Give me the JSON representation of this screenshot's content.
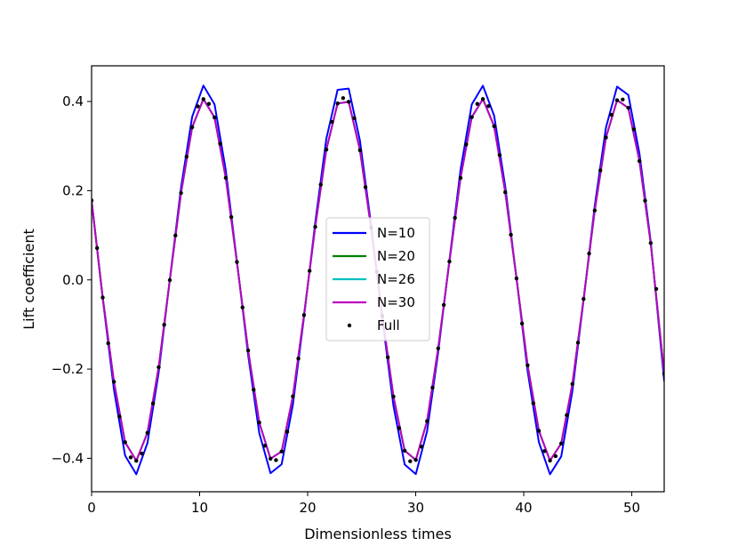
{
  "chart_data": {
    "type": "line",
    "title": "",
    "xlabel": "Dimensionless times",
    "ylabel": "Lift coefficient",
    "xlim": [
      0,
      53
    ],
    "ylim": [
      -0.475,
      0.48
    ],
    "xticks": [
      0,
      10,
      20,
      30,
      40,
      50
    ],
    "xtick_labels": [
      "0",
      "10",
      "20",
      "30",
      "40",
      "50"
    ],
    "yticks": [
      -0.4,
      -0.2,
      0.0,
      0.2,
      0.4
    ],
    "ytick_labels": [
      "−0.4",
      "−0.2",
      "0.0",
      "0.2",
      "0.4"
    ],
    "grid": false,
    "legend_position": "center",
    "series": [
      {
        "name": "N=10",
        "style": "line",
        "color": "#0000ff",
        "x": [
          0,
          1.03,
          2.07,
          3.1,
          4.14,
          5.17,
          6.21,
          7.24,
          8.28,
          9.31,
          10.35,
          11.38,
          12.42,
          13.45,
          14.49,
          15.52,
          16.56,
          17.59,
          18.63,
          19.66,
          20.7,
          21.73,
          22.77,
          23.8,
          24.84,
          25.87,
          26.91,
          27.94,
          28.98,
          30.01,
          31.05,
          32.08,
          33.12,
          34.15,
          35.19,
          36.22,
          37.26,
          38.29,
          39.33,
          40.36,
          41.4,
          42.43,
          43.47,
          44.5,
          45.54,
          46.57,
          47.61,
          48.64,
          49.68,
          50.71,
          51.75,
          53.0
        ],
        "y": [
          0.178,
          -0.0418,
          -0.2459,
          -0.3937,
          -0.4358,
          -0.3658,
          -0.2076,
          0.0004,
          0.2074,
          0.3657,
          0.4357,
          0.3938,
          0.2463,
          0.0423,
          -0.1686,
          -0.3432,
          -0.4334,
          -0.4134,
          -0.2802,
          -0.0836,
          0.1285,
          0.3168,
          0.4261,
          0.4288,
          0.312,
          0.1241,
          -0.0867,
          -0.2822,
          -0.4139,
          -0.4353,
          -0.3396,
          -0.1628,
          0.0444,
          0.2466,
          0.3935,
          0.4353,
          0.3682,
          0.2091,
          0.0034,
          -0.2047,
          -0.3638,
          -0.4358,
          -0.3958,
          -0.2496,
          -0.0451,
          0.166,
          0.3418,
          0.4333,
          0.4145,
          0.2832,
          0.0874,
          -0.2266
        ]
      },
      {
        "name": "N=20",
        "style": "line",
        "color": "#008000",
        "x": [
          0,
          1.03,
          2.07,
          3.1,
          4.14,
          5.17,
          6.21,
          7.24,
          8.28,
          9.31,
          10.35,
          11.38,
          12.42,
          13.45,
          14.49,
          15.52,
          16.56,
          17.59,
          18.63,
          19.66,
          20.7,
          21.73,
          22.77,
          23.8,
          24.84,
          25.87,
          26.91,
          27.94,
          28.98,
          30.01,
          31.05,
          32.08,
          33.12,
          34.15,
          35.19,
          36.22,
          37.26,
          38.29,
          39.33,
          40.36,
          41.4,
          42.43,
          43.47,
          44.5,
          45.54,
          46.57,
          47.61,
          48.64,
          49.68,
          50.71,
          51.75,
          53.0
        ],
        "y": [
          0.178,
          -0.0396,
          -0.2284,
          -0.3639,
          -0.4055,
          -0.3427,
          -0.1958,
          -0.0005,
          0.1949,
          0.3423,
          0.4054,
          0.3642,
          0.2289,
          0.0402,
          -0.1581,
          -0.3197,
          -0.4008,
          -0.3847,
          -0.2614,
          -0.0789,
          0.1191,
          0.2922,
          0.3957,
          0.3993,
          0.2908,
          0.1174,
          -0.0808,
          -0.2615,
          -0.3829,
          -0.4037,
          -0.3167,
          -0.1536,
          0.0412,
          0.2286,
          0.3649,
          0.4055,
          0.3446,
          0.1965,
          0.0034,
          -0.1915,
          -0.3382,
          -0.4052,
          -0.3667,
          -0.2334,
          -0.0428,
          0.1557,
          0.3193,
          0.4028,
          0.3856,
          0.2665,
          0.0827,
          -0.2103
        ]
      },
      {
        "name": "N=26",
        "style": "line",
        "color": "#00bfbf",
        "x": [
          0,
          1.03,
          2.07,
          3.1,
          4.14,
          5.17,
          6.21,
          7.24,
          8.28,
          9.31,
          10.35,
          11.38,
          12.42,
          13.45,
          14.49,
          15.52,
          16.56,
          17.59,
          18.63,
          19.66,
          20.7,
          21.73,
          22.77,
          23.8,
          24.84,
          25.87,
          26.91,
          27.94,
          28.98,
          30.01,
          31.05,
          32.08,
          33.12,
          34.15,
          35.19,
          36.22,
          37.26,
          38.29,
          39.33,
          40.36,
          41.4,
          42.43,
          43.47,
          44.5,
          45.54,
          46.57,
          47.61,
          48.64,
          49.68,
          50.71,
          51.75,
          53.0
        ],
        "y": [
          0.178,
          -0.0396,
          -0.2284,
          -0.3639,
          -0.4055,
          -0.3427,
          -0.1958,
          -0.0005,
          0.1949,
          0.3423,
          0.4054,
          0.3642,
          0.2289,
          0.0402,
          -0.1581,
          -0.3197,
          -0.4008,
          -0.3847,
          -0.2614,
          -0.0789,
          0.1191,
          0.2922,
          0.3957,
          0.3993,
          0.2908,
          0.1174,
          -0.0808,
          -0.2615,
          -0.3829,
          -0.4037,
          -0.3167,
          -0.1536,
          0.0412,
          0.2286,
          0.3649,
          0.4055,
          0.3446,
          0.1965,
          0.0034,
          -0.1915,
          -0.3382,
          -0.4052,
          -0.3667,
          -0.2334,
          -0.0428,
          0.1557,
          0.3193,
          0.4028,
          0.3856,
          0.2665,
          0.0827,
          -0.2103
        ]
      },
      {
        "name": "N=30",
        "style": "line",
        "color": "#bf00bf",
        "x": [
          0,
          1.03,
          2.07,
          3.1,
          4.14,
          5.17,
          6.21,
          7.24,
          8.28,
          9.31,
          10.35,
          11.38,
          12.42,
          13.45,
          14.49,
          15.52,
          16.56,
          17.59,
          18.63,
          19.66,
          20.7,
          21.73,
          22.77,
          23.8,
          24.84,
          25.87,
          26.91,
          27.94,
          28.98,
          30.01,
          31.05,
          32.08,
          33.12,
          34.15,
          35.19,
          36.22,
          37.26,
          38.29,
          39.33,
          40.36,
          41.4,
          42.43,
          43.47,
          44.5,
          45.54,
          46.57,
          47.61,
          48.64,
          49.68,
          50.71,
          51.75,
          53.0
        ],
        "y": [
          0.178,
          -0.0396,
          -0.2284,
          -0.3639,
          -0.4055,
          -0.3427,
          -0.1958,
          -0.0005,
          0.1949,
          0.3423,
          0.4054,
          0.3642,
          0.2289,
          0.0402,
          -0.1581,
          -0.3197,
          -0.4008,
          -0.3847,
          -0.2614,
          -0.0789,
          0.1191,
          0.2922,
          0.3957,
          0.3993,
          0.2908,
          0.1174,
          -0.0808,
          -0.2615,
          -0.3829,
          -0.4037,
          -0.3167,
          -0.1536,
          0.0412,
          0.2286,
          0.3649,
          0.4055,
          0.3446,
          0.1965,
          0.0034,
          -0.1915,
          -0.3382,
          -0.4052,
          -0.3667,
          -0.2334,
          -0.0428,
          0.1557,
          0.3193,
          0.4028,
          0.3856,
          0.2665,
          0.0827,
          -0.2103
        ]
      },
      {
        "name": "Full",
        "style": "points",
        "color": "#000000",
        "x": [
          0,
          0.51,
          1.03,
          1.54,
          2.07,
          2.58,
          3.1,
          3.62,
          4.14,
          4.65,
          5.17,
          5.69,
          6.21,
          6.72,
          7.24,
          7.76,
          8.28,
          8.79,
          9.31,
          9.83,
          10.35,
          10.86,
          11.38,
          11.9,
          12.42,
          12.93,
          13.45,
          13.97,
          14.49,
          15.0,
          15.52,
          16.04,
          16.56,
          17.07,
          17.59,
          18.11,
          18.63,
          19.14,
          19.66,
          20.18,
          20.7,
          21.21,
          21.73,
          22.25,
          22.77,
          23.28,
          23.8,
          24.32,
          24.84,
          25.35,
          25.87,
          26.39,
          26.91,
          27.42,
          27.94,
          28.46,
          28.98,
          29.49,
          30.01,
          30.53,
          31.05,
          31.56,
          32.08,
          32.6,
          33.12,
          33.63,
          34.15,
          34.67,
          35.19,
          35.7,
          36.22,
          36.74,
          37.26,
          37.77,
          38.29,
          38.81,
          39.33,
          39.84,
          40.36,
          40.88,
          41.4,
          41.91,
          42.43,
          42.95,
          43.47,
          43.98,
          44.5,
          45.02,
          45.54,
          46.05,
          46.57,
          47.09,
          47.61,
          48.12,
          48.64,
          49.16,
          49.68,
          50.19,
          50.71,
          51.23,
          51.75,
          52.26,
          53.0
        ],
        "y": [
          0.178,
          0.0713,
          -0.0396,
          -0.1421,
          -0.2284,
          -0.3064,
          -0.3639,
          -0.3979,
          -0.4055,
          -0.3894,
          -0.3427,
          -0.2769,
          -0.1958,
          -0.1006,
          -0.0005,
          0.0996,
          0.1949,
          0.2762,
          0.3423,
          0.3891,
          0.4054,
          0.3946,
          0.3642,
          0.3054,
          0.2289,
          0.141,
          0.0402,
          -0.0617,
          -0.1581,
          -0.2463,
          -0.3197,
          -0.3718,
          -0.4008,
          -0.4041,
          -0.3847,
          -0.3404,
          -0.2614,
          -0.1764,
          -0.0789,
          0.0204,
          0.1191,
          0.2136,
          0.2922,
          0.3542,
          0.3957,
          0.4076,
          0.3993,
          0.3625,
          0.2908,
          0.208,
          0.1174,
          0.0183,
          -0.0808,
          -0.1736,
          -0.2615,
          -0.3324,
          -0.3829,
          -0.4066,
          -0.4037,
          -0.3739,
          -0.3167,
          -0.2415,
          -0.1536,
          -0.0561,
          0.0412,
          0.1392,
          0.2286,
          0.3037,
          0.3649,
          0.3946,
          0.4055,
          0.3897,
          0.3446,
          0.2799,
          0.1965,
          0.1013,
          0.0034,
          -0.0978,
          -0.1915,
          -0.2766,
          -0.3382,
          -0.384,
          -0.4052,
          -0.3952,
          -0.3667,
          -0.3032,
          -0.2334,
          -0.1406,
          -0.0428,
          0.0593,
          0.1557,
          0.2455,
          0.3193,
          0.3702,
          0.4028,
          0.4044,
          0.3856,
          0.3376,
          0.2665,
          0.1778,
          0.0827,
          -0.0203,
          -0.2103
        ]
      }
    ]
  }
}
